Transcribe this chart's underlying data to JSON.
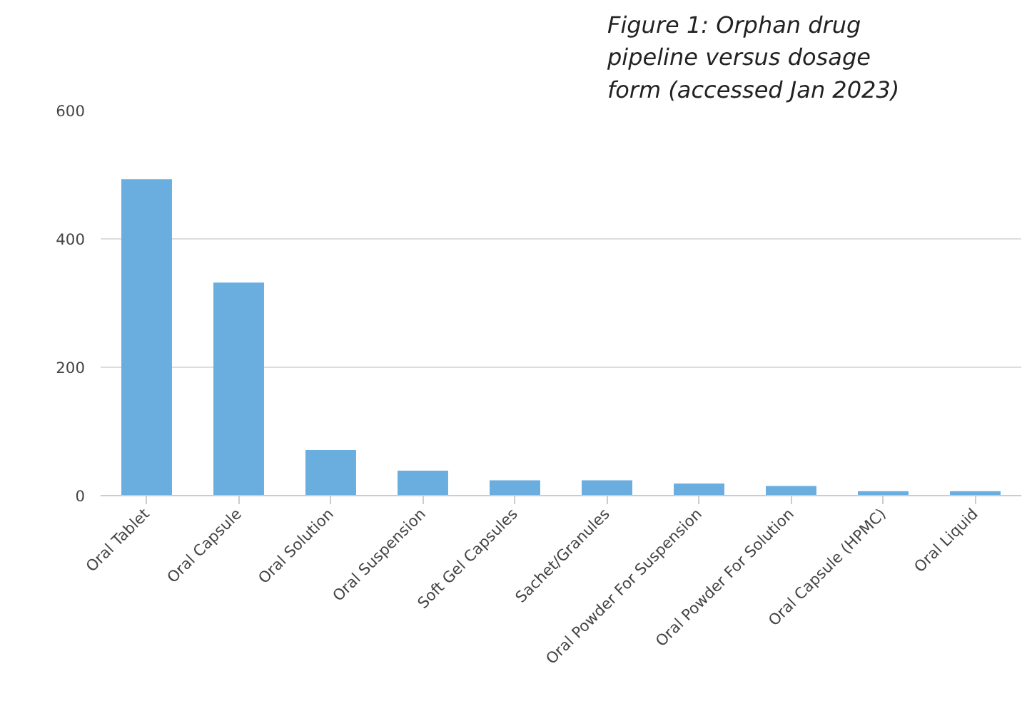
{
  "chart_data": {
    "type": "bar",
    "title": "Figure 1: Orphan drug pipeline versus dosage form (accessed Jan 2023)",
    "categories": [
      "Oral Tablet",
      "Oral Capsule",
      "Oral Solution",
      "Oral Suspension",
      "Soft Gel Capsules",
      "Sachet/Granules",
      "Oral Powder For Suspension",
      "Oral Powder For Solution",
      "Oral Capsule (HPMC)",
      "Oral Liquid"
    ],
    "values": [
      493,
      332,
      71,
      39,
      24,
      24,
      19,
      15,
      7,
      7
    ],
    "color": "#6aaee0",
    "ylim": [
      0,
      600
    ],
    "yticks": [
      0,
      200,
      400,
      600
    ],
    "grid": "y"
  }
}
